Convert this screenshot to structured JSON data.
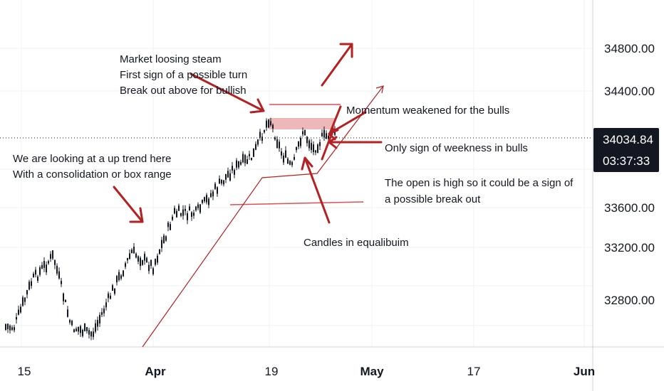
{
  "chart_data": {
    "type": "candlestick",
    "y_ticks": [
      34800,
      34400,
      33600,
      33200,
      32800
    ],
    "y_tick_labels": [
      "34800.00",
      "34400.00",
      "33600.00",
      "33200.00",
      "32800.00"
    ],
    "x_tick_labels": [
      {
        "text": "15",
        "bold": false
      },
      {
        "text": "Apr",
        "bold": true
      },
      {
        "text": "19",
        "bold": false
      },
      {
        "text": "May",
        "bold": true
      },
      {
        "text": "17",
        "bold": false
      },
      {
        "text": "Jun",
        "bold": true
      }
    ],
    "current_price": "34034.84",
    "countdown": "03:37:33",
    "annotations": {
      "market_turn": [
        "Market loosing steam",
        "First sign of a possible turn",
        "Break out above for bullish"
      ],
      "uptrend": [
        "We are looking at a up trend here",
        "With a consolidation or box range"
      ],
      "momentum": "Momentum weakened for the bulls",
      "weakness": "Only sign of weekness in bulls",
      "open_high": [
        "The open is high so it could be a sign of",
        "a possible break out"
      ],
      "equilibrium": "Candles in equalibuim"
    },
    "colors": {
      "bull": "#131722",
      "annotation": "#b22222",
      "zone": "#e8a0a0",
      "channel": "#e05050",
      "label_bg": "#131722"
    }
  }
}
